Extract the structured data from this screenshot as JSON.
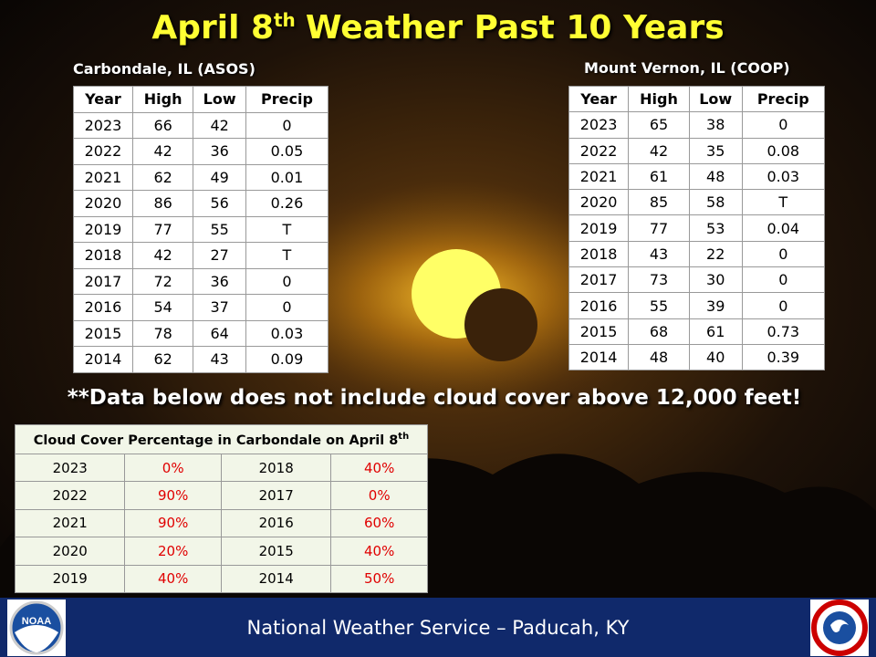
{
  "title": {
    "main": "April 8",
    "sup": "th",
    "rest": "Weather Past 10 Years"
  },
  "left_table": {
    "caption": "Carbondale, IL (ASOS)",
    "header": [
      "Year",
      "High",
      "Low",
      "Precip"
    ],
    "rows": [
      [
        2023,
        66,
        42,
        0
      ],
      [
        2022,
        42,
        36,
        0.05
      ],
      [
        2021,
        62,
        49,
        0.01
      ],
      [
        2020,
        86,
        56,
        0.26
      ],
      [
        2019,
        77,
        55,
        "T"
      ],
      [
        2018,
        42,
        27,
        "T"
      ],
      [
        2017,
        72,
        36,
        0
      ],
      [
        2016,
        54,
        37,
        0
      ],
      [
        2015,
        78,
        64,
        0.03
      ],
      [
        2014,
        62,
        43,
        0.09
      ]
    ]
  },
  "right_table": {
    "caption": "Mount Vernon, IL (COOP)",
    "header": [
      "Year",
      "High",
      "Low",
      "Precip"
    ],
    "rows": [
      [
        2023,
        65,
        38,
        0
      ],
      [
        2022,
        42,
        35,
        0.08
      ],
      [
        2021,
        61,
        48,
        0.03
      ],
      [
        2020,
        85,
        58,
        "T"
      ],
      [
        2019,
        77,
        53,
        0.04
      ],
      [
        2018,
        43,
        22,
        0
      ],
      [
        2017,
        73,
        30,
        0
      ],
      [
        2016,
        55,
        39,
        0
      ],
      [
        2015,
        68,
        61,
        0.73
      ],
      [
        2014,
        48,
        40,
        0.39
      ]
    ]
  },
  "note": "**Data below does not include cloud cover above 12,000 feet!",
  "cloud_table": {
    "title": "Cloud Cover Percentage in Carbondale  on April 8",
    "title_sup": "th",
    "rows": [
      [
        "2023",
        "0%",
        "2018",
        "40%"
      ],
      [
        "2022",
        "90%",
        "2017",
        "0%"
      ],
      [
        "2021",
        "90%",
        "2016",
        "60%"
      ],
      [
        "2020",
        "20%",
        "2015",
        "40%"
      ],
      [
        "2019",
        "40%",
        "2014",
        "50%"
      ]
    ]
  },
  "footer": {
    "text": "National Weather Service – Paducah, KY",
    "noaa_logo": "NOAA"
  }
}
